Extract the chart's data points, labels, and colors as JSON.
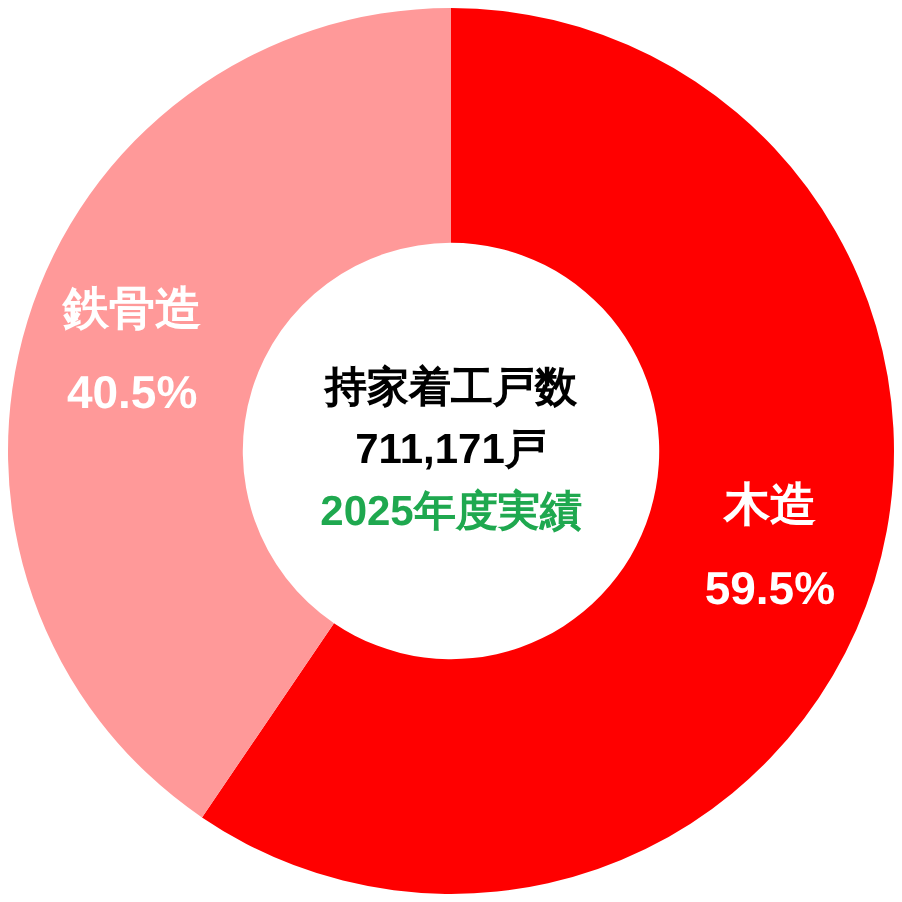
{
  "chart_data": {
    "type": "donut",
    "title": "持家着工戸数",
    "subtitle": "711,171戸",
    "annotations": [
      "2025年度実績"
    ],
    "categories": [
      "木造",
      "鉄骨造"
    ],
    "values": [
      59.5,
      40.5
    ],
    "colors": [
      "#ff0000",
      "#ff9999"
    ],
    "value_labels": [
      "59.5%",
      "40.5%"
    ],
    "legend": false
  }
}
